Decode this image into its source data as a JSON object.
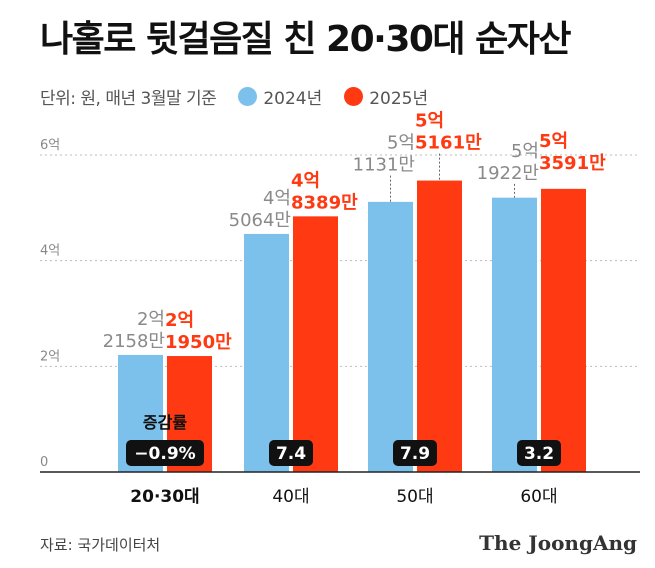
{
  "title": "나홀로 뒷걸음질 친 20·30대 순자산",
  "unit_note": "단위: 원, 매년 3월말 기준",
  "legend": [
    {
      "label": "2024년",
      "color": "#7cc0ec"
    },
    {
      "label": "2025년",
      "color": "#ff3a12"
    }
  ],
  "source": "자료: 국가데이터처",
  "brand": "The JoongAng",
  "chart_data": {
    "type": "bar",
    "categories": [
      "20·30대",
      "40대",
      "50대",
      "60대"
    ],
    "series": [
      {
        "name": "2024년",
        "values": [
          2.2158,
          4.5064,
          5.1131,
          5.1922
        ],
        "labels": [
          [
            "2억",
            "2158만"
          ],
          [
            "4억",
            "5064만"
          ],
          [
            "5억",
            "1131만"
          ],
          [
            "5억",
            "1922만"
          ]
        ]
      },
      {
        "name": "2025년",
        "values": [
          2.195,
          4.8389,
          5.5161,
          5.3591
        ],
        "labels": [
          [
            "2억",
            "1950만"
          ],
          [
            "4억",
            "8389만"
          ],
          [
            "5억",
            "5161만"
          ],
          [
            "5억",
            "3591만"
          ]
        ]
      }
    ],
    "y_ticks": [
      "0",
      "2억",
      "4억",
      "6억"
    ],
    "y_tick_values": [
      0,
      2,
      4,
      6
    ],
    "ylim": [
      0,
      6
    ],
    "change_label": "증감률",
    "changes": [
      "−0.9%",
      "7.4",
      "7.9",
      "3.2"
    ],
    "grid": "horizontal dotted"
  }
}
